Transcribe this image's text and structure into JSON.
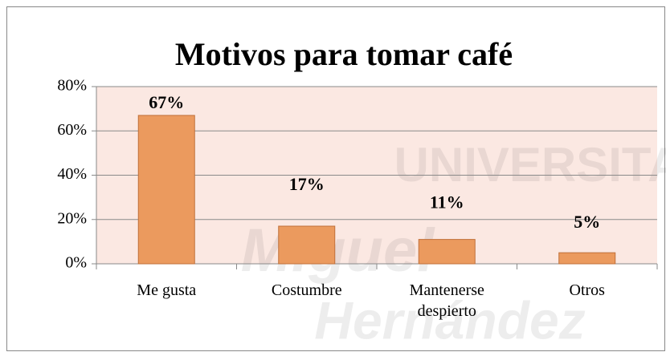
{
  "chart_data": {
    "type": "bar",
    "title": "Motivos para tomar café",
    "categories": [
      "Me gusta",
      "Costumbre",
      "Mantenerse despierto",
      "Otros"
    ],
    "values": [
      67,
      17,
      11,
      5
    ],
    "value_labels": [
      "67%",
      "17%",
      "11%",
      "5%"
    ],
    "color": "#eb9a5e",
    "ylim": [
      0,
      80
    ],
    "yticks": [
      {
        "value": 0,
        "label": "0%"
      },
      {
        "value": 20,
        "label": "20%"
      },
      {
        "value": 40,
        "label": "40%"
      },
      {
        "value": 60,
        "label": "60%"
      },
      {
        "value": 80,
        "label": "80%"
      }
    ],
    "grid": true,
    "watermark": [
      "UNIVERSITAS",
      "Miguel",
      "Hernández"
    ]
  }
}
